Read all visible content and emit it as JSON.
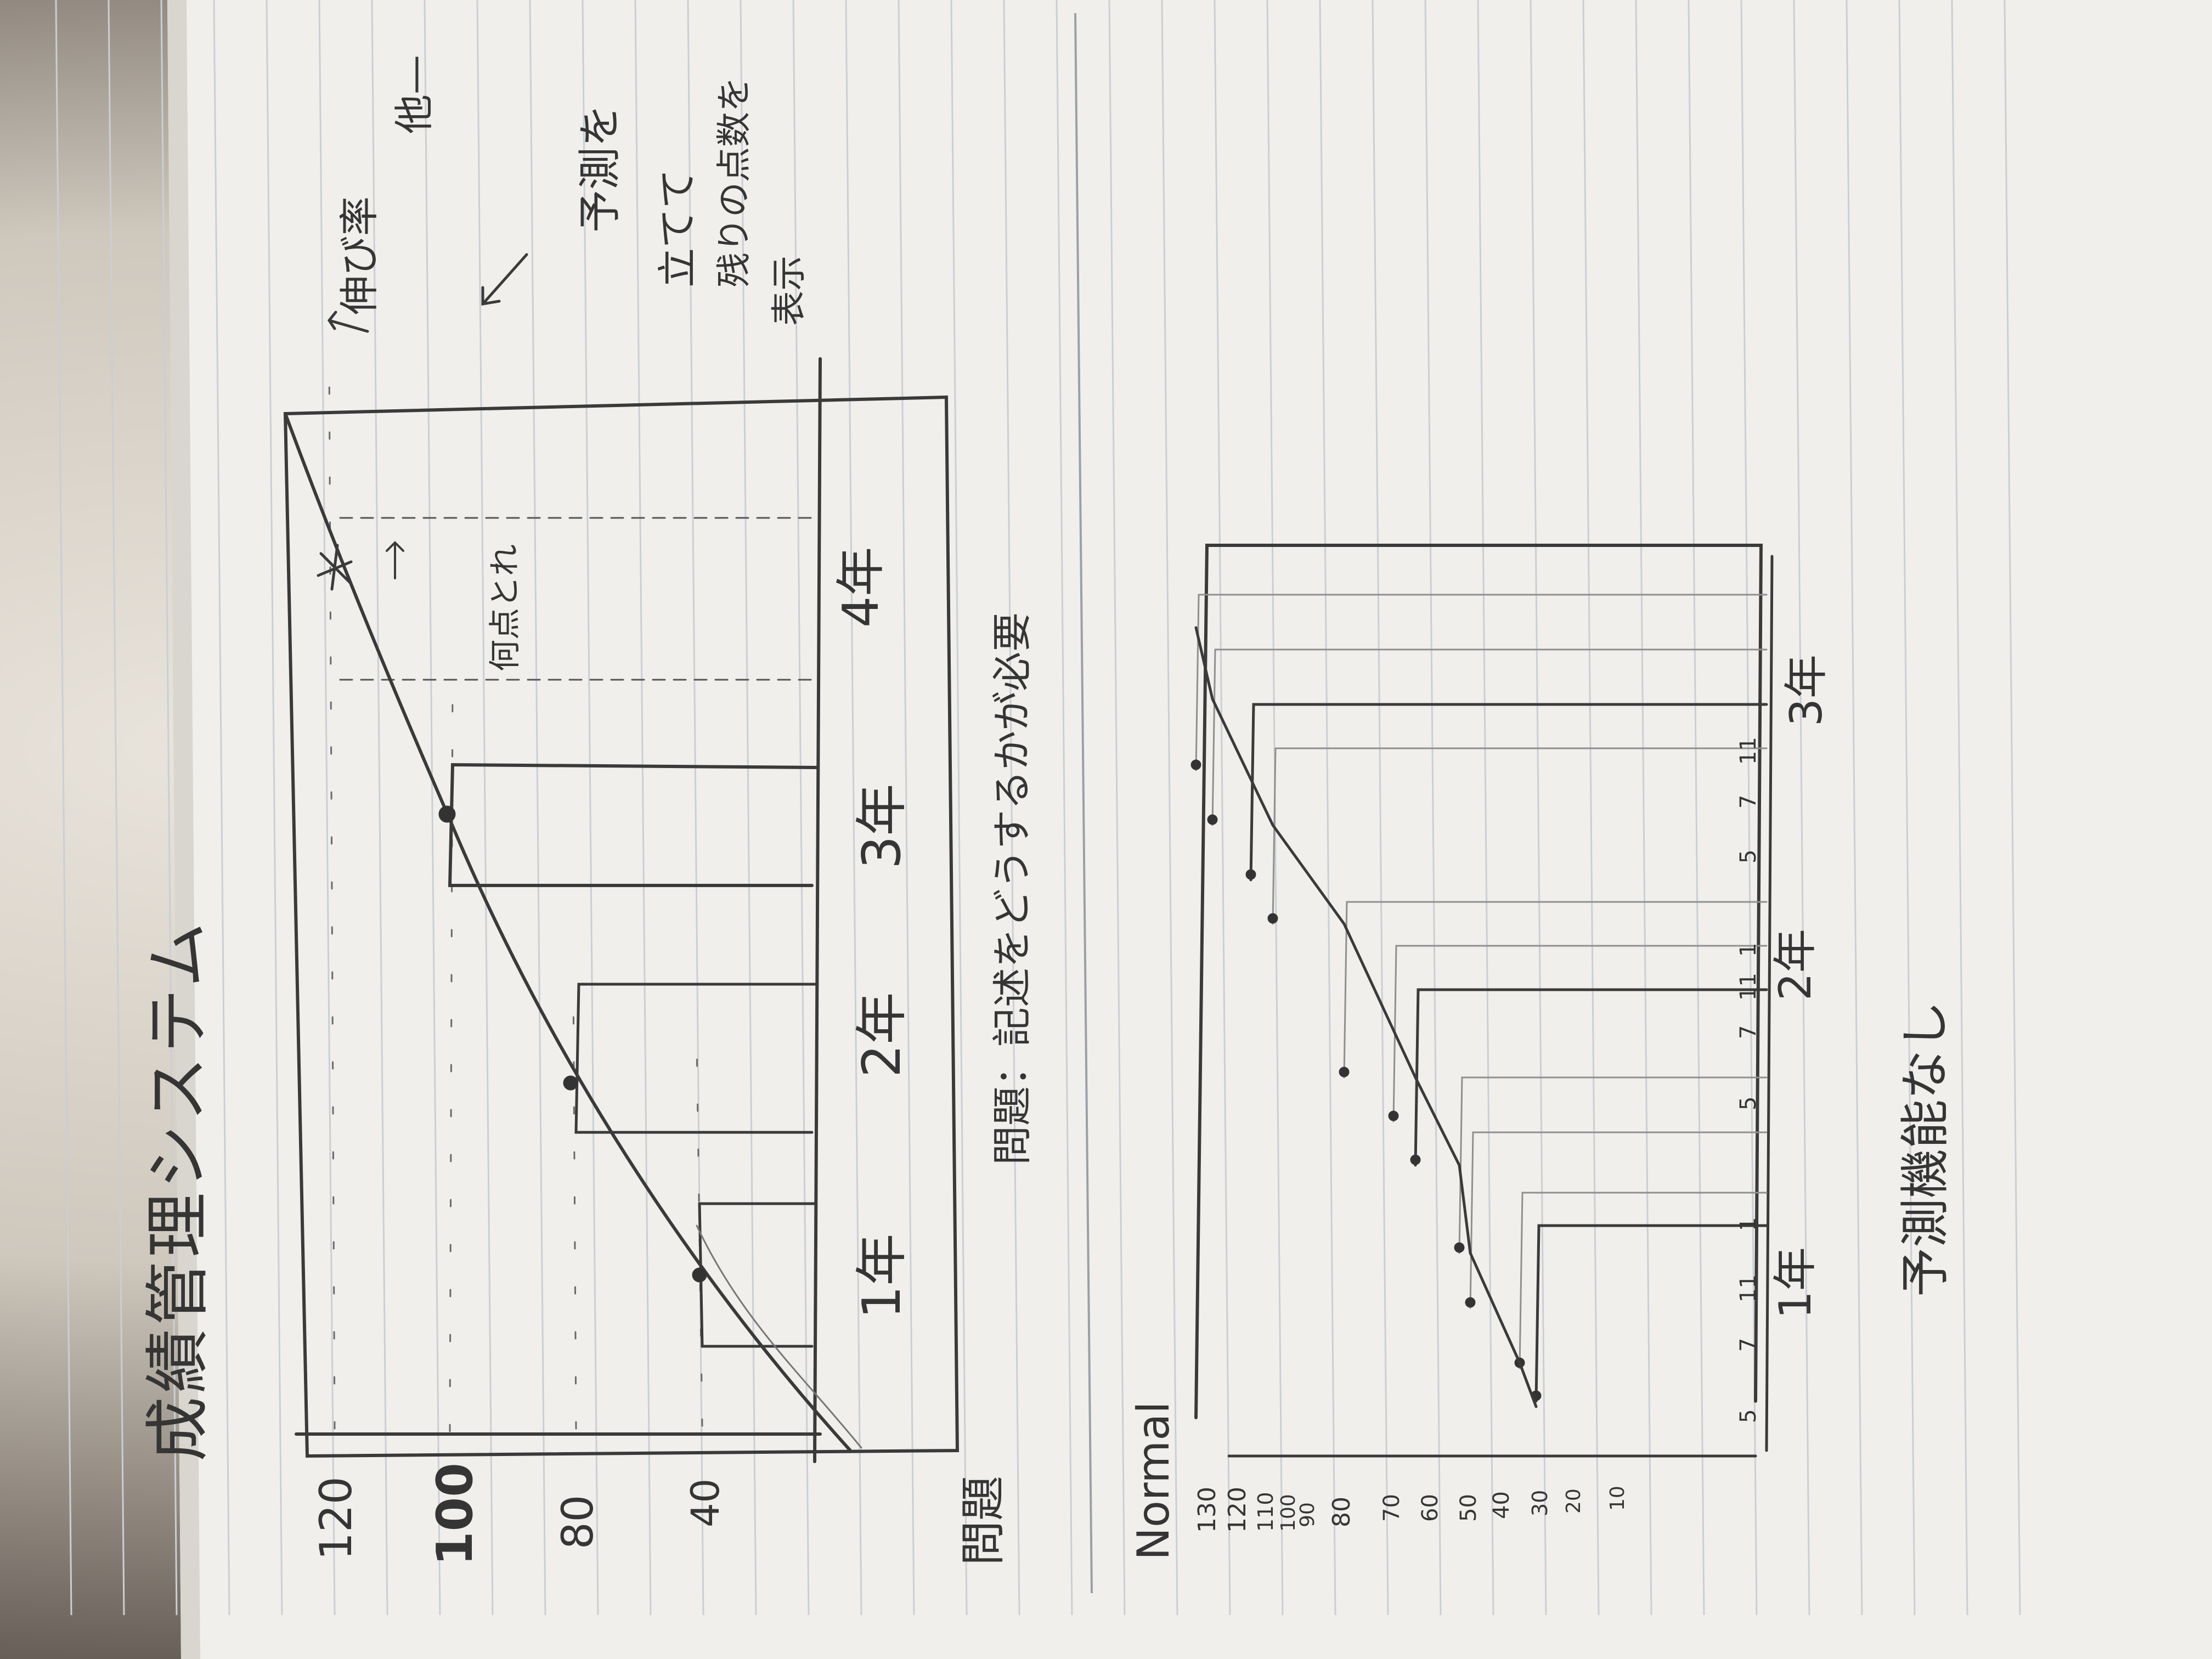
{
  "page": {
    "title": "成績管理システム",
    "bottom_label": "Normal",
    "problem_label": "問題",
    "problem_note": "問題：記述をどうするかが必要",
    "conclusion": "予測機能なし"
  },
  "annotations": {
    "arrow_note": "伸び率",
    "arrow_note_end": "他—",
    "side_note_1": "予測を",
    "side_note_2": "立てて",
    "side_note_3": "残りの点数を",
    "side_note_4": "表示",
    "line_note": "何点とれ"
  },
  "colors": {
    "paper": "#f1efeb",
    "rule": "#c9cfd6",
    "ink": "#353535",
    "fabric": "#d8d2c8"
  },
  "chart_data": [
    {
      "type": "bar",
      "yticks": [
        "120",
        "100",
        "80",
        "40"
      ],
      "categories": [
        "1年",
        "2年",
        "3年",
        "4年"
      ]
    },
    {
      "type": "bar",
      "yticks": [
        "130",
        "120",
        "110",
        "100",
        "90",
        "80",
        "70",
        "60",
        "50",
        "40",
        "30",
        "20",
        "10"
      ],
      "categories": [
        "1年",
        "2年",
        "3年"
      ],
      "bar_labels": [
        "5",
        "7",
        "11",
        "1",
        "5",
        "7",
        "11",
        "1",
        "5",
        "7",
        "11"
      ]
    }
  ]
}
